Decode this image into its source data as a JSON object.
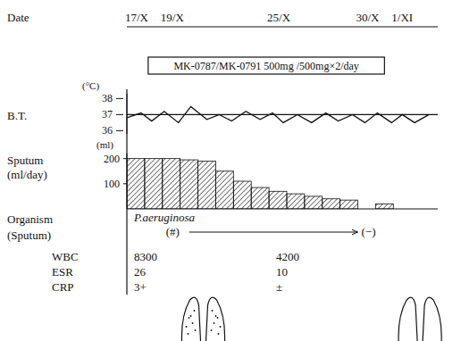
{
  "date_axis": {
    "label": "Date",
    "xlim": [
      0,
      17.5
    ],
    "xticks": [
      {
        "value": 0,
        "label": "17/X"
      },
      {
        "value": 2,
        "label": "19/X"
      },
      {
        "value": 8,
        "label": "25/X"
      },
      {
        "value": 13,
        "label": "30/X"
      },
      {
        "value": 15,
        "label": "1/XI"
      }
    ]
  },
  "treatment": {
    "label": "MK-0787/MK-0791 500mg /500mg×2/day",
    "start": 1.2,
    "end": 14.5
  },
  "chart_data": [
    {
      "type": "line",
      "title": "B.T.",
      "y_unit": "(°C)",
      "color": "#111111",
      "x": [
        0,
        0.8,
        1.4,
        2.1,
        2.9,
        3.6,
        4.5,
        5.2,
        5.9,
        6.7,
        7.5,
        8.2,
        8.8,
        9.6,
        10.4,
        11.2,
        11.9,
        12.7,
        13.4,
        14.1,
        14.9,
        15.5,
        16.2,
        17.0
      ],
      "values": [
        36.8,
        37.1,
        36.6,
        37.2,
        36.5,
        37.5,
        36.7,
        37.0,
        36.6,
        37.2,
        36.7,
        37.1,
        36.5,
        37.0,
        36.5,
        37.1,
        36.6,
        37.0,
        36.5,
        37.1,
        36.5,
        37.0,
        36.5,
        37.0
      ],
      "xlim": [
        0,
        17.5
      ],
      "ylim": [
        35.8,
        38.3
      ],
      "yticks": [
        36,
        37,
        38
      ],
      "reference_line": 37,
      "tick_labels": "y"
    },
    {
      "type": "bar",
      "title": "Sputum",
      "y_label": "(ml/day)",
      "y_unit": "(ml)",
      "color": "#111111",
      "x": [
        0,
        1,
        2,
        3,
        4,
        5,
        6,
        7,
        8,
        9,
        10,
        11,
        12,
        13,
        14
      ],
      "values": [
        200,
        200,
        200,
        195,
        190,
        150,
        110,
        85,
        70,
        60,
        50,
        40,
        35,
        0,
        20
      ],
      "xlim": [
        0,
        17.5
      ],
      "ylim": [
        0,
        220
      ],
      "yticks": [
        100,
        200
      ],
      "tick_labels": "y"
    }
  ],
  "organism": {
    "title": "Organism",
    "subtitle": "(Sputum)",
    "name": "P.aeruginosa",
    "results": [
      {
        "day": 2,
        "label": "(#)"
      },
      {
        "day": 13,
        "label": "(−)"
      }
    ]
  },
  "labs": {
    "days": [
      0,
      8
    ],
    "rows": [
      {
        "name": "WBC",
        "values": [
          8300,
          4200
        ]
      },
      {
        "name": "ESR",
        "values": [
          26,
          10
        ]
      },
      {
        "name": "CRP",
        "values": [
          "3+",
          "±"
        ]
      }
    ]
  }
}
